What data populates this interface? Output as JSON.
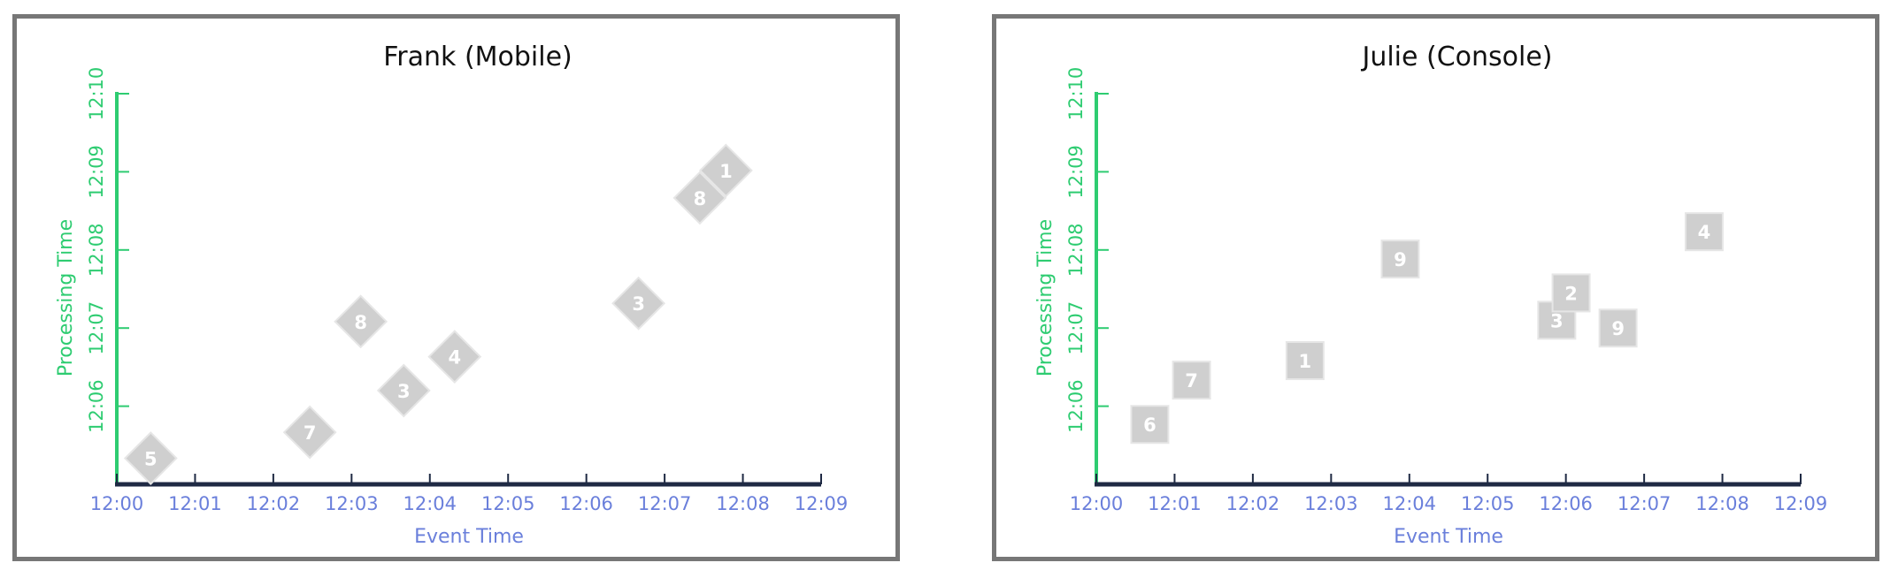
{
  "chart_data": [
    {
      "type": "scatter",
      "title": "Frank (Mobile)",
      "xlabel": "Event Time",
      "ylabel": "Processing Time",
      "x_ticks": [
        "12:00",
        "12:01",
        "12:02",
        "12:03",
        "12:04",
        "12:05",
        "12:06",
        "12:07",
        "12:08",
        "12:09"
      ],
      "y_ticks": [
        "12:06",
        "12:07",
        "12:08",
        "12:09",
        "12:10"
      ],
      "xlim": [
        "12:00",
        "12:09"
      ],
      "ylim": [
        "12:05",
        "12:10"
      ],
      "marker": "diamond",
      "points": [
        {
          "label": "5",
          "x": "12:00:26",
          "y": "12:05:20"
        },
        {
          "label": "7",
          "x": "12:02:28",
          "y": "12:05:40"
        },
        {
          "label": "8",
          "x": "12:03:07",
          "y": "12:07:05"
        },
        {
          "label": "3",
          "x": "12:03:40",
          "y": "12:06:12"
        },
        {
          "label": "4",
          "x": "12:04:19",
          "y": "12:06:38"
        },
        {
          "label": "3",
          "x": "12:06:40",
          "y": "12:07:19"
        },
        {
          "label": "8",
          "x": "12:07:27",
          "y": "12:08:40"
        },
        {
          "label": "1",
          "x": "12:07:47",
          "y": "12:09:01"
        }
      ]
    },
    {
      "type": "scatter",
      "title": "Julie (Console)",
      "xlabel": "Event Time",
      "ylabel": "Processing Time",
      "x_ticks": [
        "12:00",
        "12:01",
        "12:02",
        "12:03",
        "12:04",
        "12:05",
        "12:06",
        "12:07",
        "12:08",
        "12:09"
      ],
      "y_ticks": [
        "12:06",
        "12:07",
        "12:08",
        "12:09",
        "12:10"
      ],
      "xlim": [
        "12:00",
        "12:09"
      ],
      "ylim": [
        "12:05",
        "12:10"
      ],
      "marker": "square",
      "points": [
        {
          "label": "6",
          "x": "12:00:41",
          "y": "12:05:46"
        },
        {
          "label": "7",
          "x": "12:01:13",
          "y": "12:06:20"
        },
        {
          "label": "1",
          "x": "12:02:40",
          "y": "12:06:35"
        },
        {
          "label": "9",
          "x": "12:03:53",
          "y": "12:07:53"
        },
        {
          "label": "3",
          "x": "12:05:53",
          "y": "12:07:06"
        },
        {
          "label": "2",
          "x": "12:06:04",
          "y": "12:07:27"
        },
        {
          "label": "9",
          "x": "12:06:40",
          "y": "12:07:00"
        },
        {
          "label": "4",
          "x": "12:07:46",
          "y": "12:08:14"
        }
      ]
    }
  ],
  "colors": {
    "frame": "#777777",
    "y_axis": "#2ecc71",
    "x_axis": "#1f2a44",
    "x_text": "#6a7fdb",
    "marker_fill": "#cfcfcf",
    "marker_edge": "#e6e6e6",
    "marker_text": "#ffffff",
    "title": "#111111"
  }
}
